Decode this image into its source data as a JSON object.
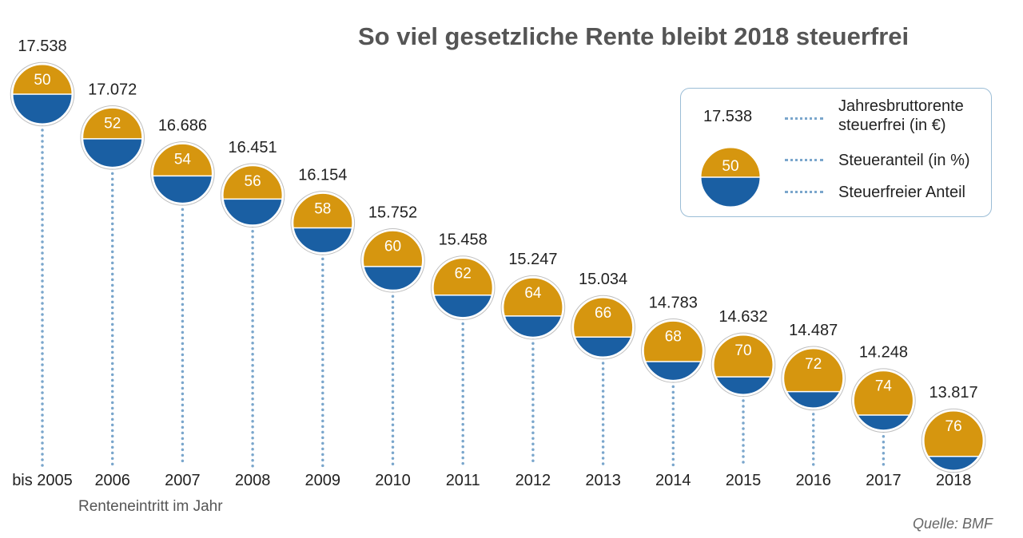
{
  "title": "So viel gesetzliche Rente bleibt 2018 steuerfrei",
  "source": "Quelle: BMF",
  "colors": {
    "top": "#d6960f",
    "bottom": "#1a5fa3",
    "dots": "#7aa6cc",
    "border": "#9bbdd6",
    "ring": "#ffffff"
  },
  "legend": {
    "value": "17.538",
    "percent": "50",
    "label_value": "Jahresbruttorente steuerfrei (in €)",
    "label_value_line1": "Jahresbruttorente",
    "label_value_line2": "steuerfrei (in €)",
    "label_percent": "Steueranteil (in %)",
    "label_free": "Steuerfreier Anteil"
  },
  "chart_data": {
    "type": "scatter",
    "title": "So viel gesetzliche Rente bleibt 2018 steuerfrei",
    "xlabel": "Renteneintritt im Jahr",
    "categories": [
      "bis 2005",
      "2006",
      "2007",
      "2008",
      "2009",
      "2010",
      "2011",
      "2012",
      "2013",
      "2014",
      "2015",
      "2016",
      "2017",
      "2018"
    ],
    "series": [
      {
        "name": "Jahresbruttorente steuerfrei (in €)",
        "values": [
          17538,
          17072,
          16686,
          16451,
          16154,
          15752,
          15458,
          15247,
          15034,
          14783,
          14632,
          14487,
          14248,
          13817
        ],
        "labels": [
          "17.538",
          "17.072",
          "16.686",
          "16.451",
          "16.154",
          "15.752",
          "15.458",
          "15.247",
          "15.034",
          "14.783",
          "14.632",
          "14.487",
          "14.248",
          "13.817"
        ]
      },
      {
        "name": "Steueranteil (in %)",
        "values": [
          50,
          52,
          54,
          56,
          58,
          60,
          62,
          64,
          66,
          68,
          70,
          72,
          74,
          76
        ]
      }
    ],
    "legend_position": "top-right",
    "grid": false
  }
}
